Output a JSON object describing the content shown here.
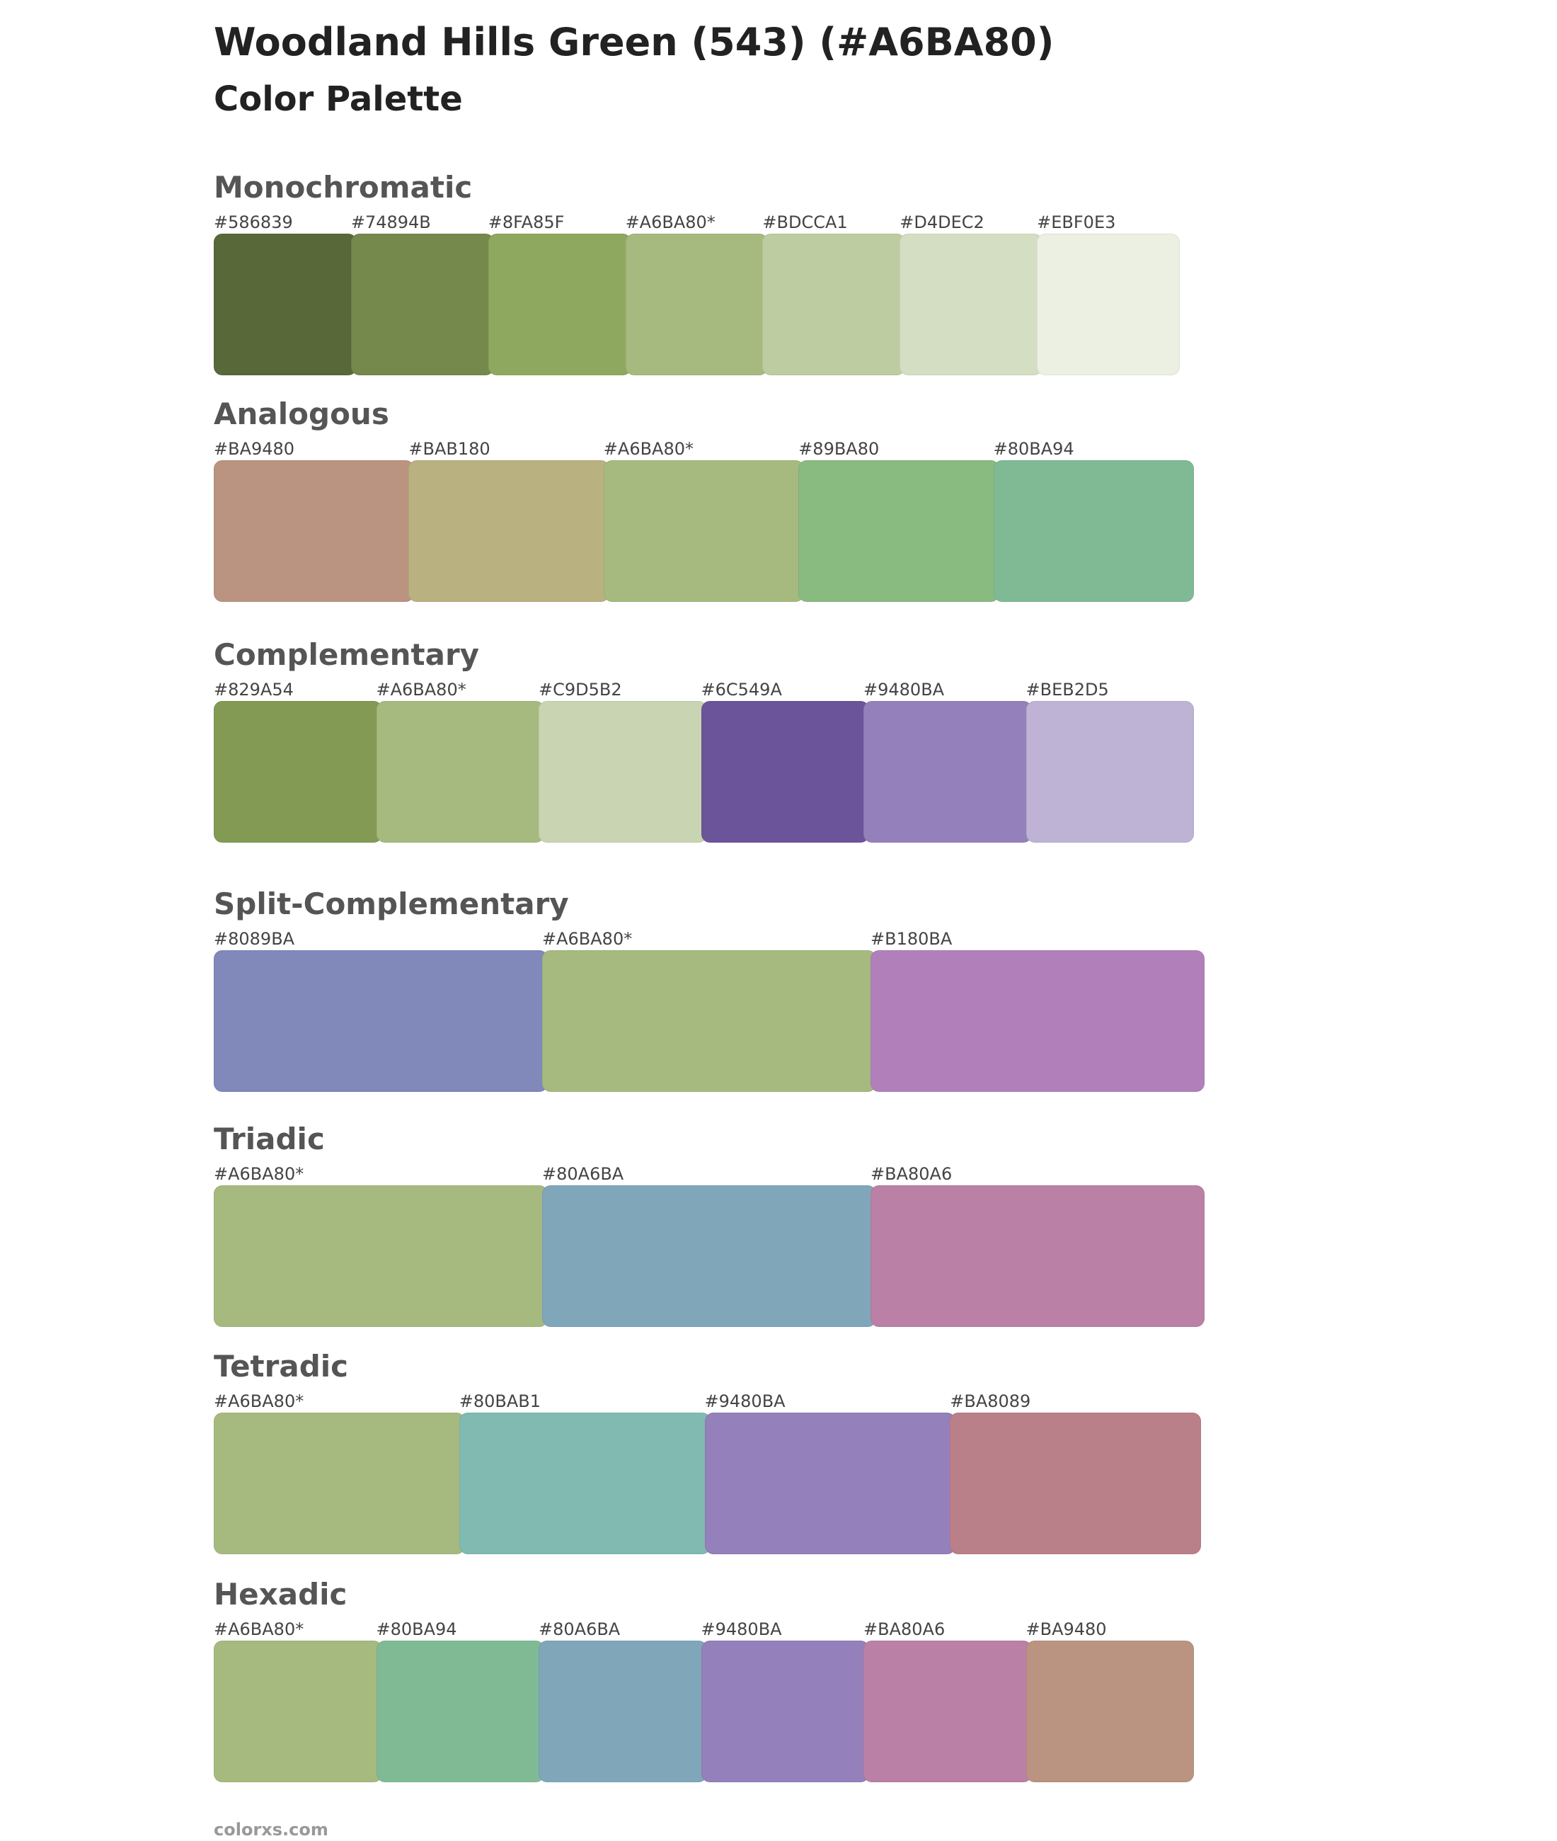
{
  "header": {
    "title": "Woodland Hills Green (543) (#A6BA80)",
    "subtitle": "Color Palette"
  },
  "sections": [
    {
      "name": "Monochromatic",
      "swatches": [
        "#586839",
        "#74894B",
        "#8FA85F",
        "#A6BA80*",
        "#BDCCA1",
        "#D4DEC2",
        "#EBF0E3"
      ]
    },
    {
      "name": "Analogous",
      "swatches": [
        "#BA9480",
        "#BAB180",
        "#A6BA80*",
        "#89BA80",
        "#80BA94"
      ]
    },
    {
      "name": "Complementary",
      "swatches": [
        "#829A54",
        "#A6BA80*",
        "#C9D5B2",
        "#6C549A",
        "#9480BA",
        "#BEB2D5"
      ]
    },
    {
      "name": "Split-Complementary",
      "swatches": [
        "#8089BA",
        "#A6BA80*",
        "#B180BA"
      ]
    },
    {
      "name": "Triadic",
      "swatches": [
        "#A6BA80*",
        "#80A6BA",
        "#BA80A6"
      ]
    },
    {
      "name": "Tetradic",
      "swatches": [
        "#A6BA80*",
        "#80BAB1",
        "#9480BA",
        "#BA8089"
      ]
    },
    {
      "name": "Hexadic",
      "swatches": [
        "#A6BA80*",
        "#80BA94",
        "#80A6BA",
        "#9480BA",
        "#BA80A6",
        "#BA9480"
      ]
    }
  ],
  "footer": "colorxs.com"
}
